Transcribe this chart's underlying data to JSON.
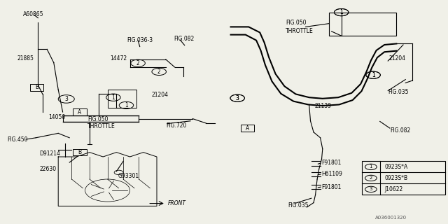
{
  "bg_color": "#f0f0e8",
  "line_color": "#000000",
  "fig_width": 6.4,
  "fig_height": 3.2,
  "dpi": 100,
  "legend_items": [
    {
      "num": "1",
      "text": "0923S*A"
    },
    {
      "num": "2",
      "text": "0923S*B"
    },
    {
      "num": "3",
      "text": "J10622"
    }
  ]
}
